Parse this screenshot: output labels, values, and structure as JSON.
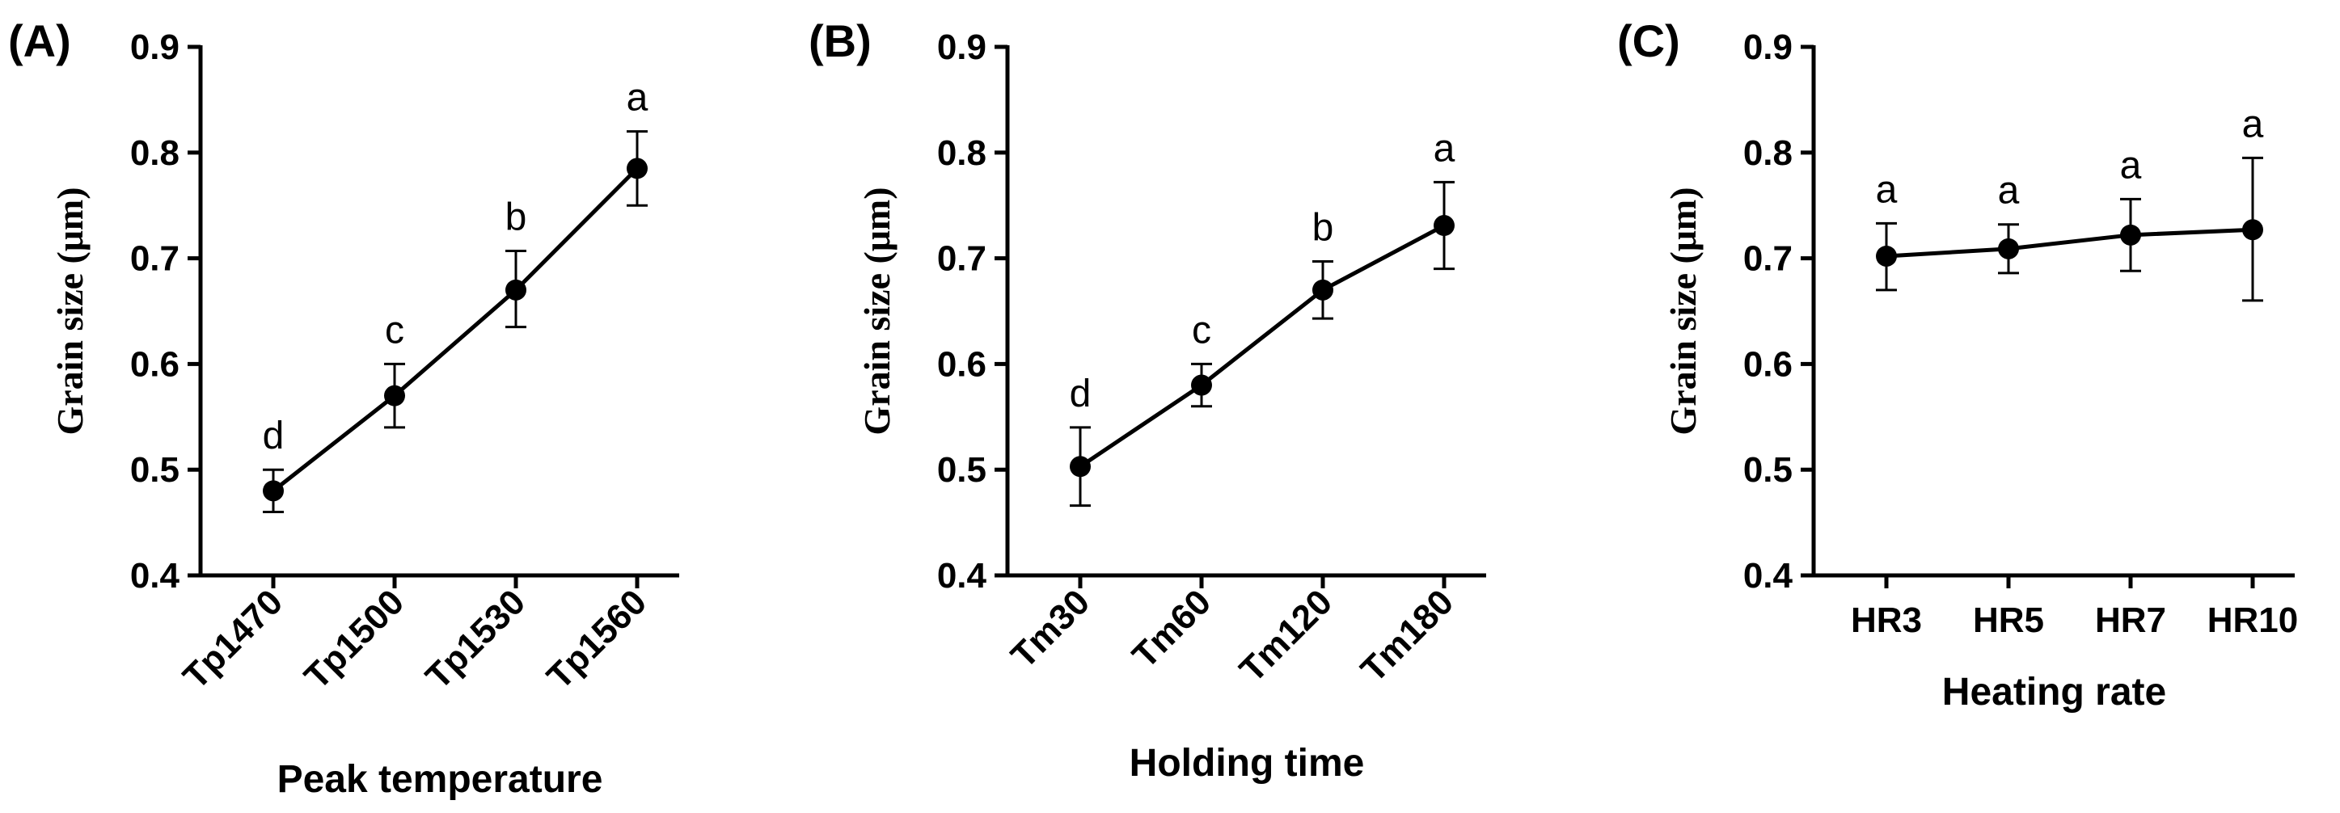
{
  "chart_data": [
    {
      "type": "line",
      "panel": "(A)",
      "categories": [
        "Tp1470",
        "Tp1500",
        "Tp1530",
        "Tp1560"
      ],
      "values": [
        0.48,
        0.57,
        0.67,
        0.785
      ],
      "errors": [
        [
          0.46,
          0.5
        ],
        [
          0.54,
          0.6
        ],
        [
          0.635,
          0.707
        ],
        [
          0.75,
          0.82
        ]
      ],
      "sig_labels": [
        "d",
        "c",
        "b",
        "a"
      ],
      "xlabel": "Peak temperature",
      "ylabel": "Grain size (μm)",
      "ylim": [
        0.4,
        0.9
      ],
      "yticks": [
        "0.4",
        "0.5",
        "0.6",
        "0.7",
        "0.8",
        "0.9"
      ],
      "rotated_xticks": true
    },
    {
      "type": "line",
      "panel": "(B)",
      "categories": [
        "Tm30",
        "Tm60",
        "Tm120",
        "Tm180"
      ],
      "values": [
        0.503,
        0.58,
        0.67,
        0.731
      ],
      "errors": [
        [
          0.466,
          0.54
        ],
        [
          0.56,
          0.6
        ],
        [
          0.643,
          0.697
        ],
        [
          0.69,
          0.772
        ]
      ],
      "sig_labels": [
        "d",
        "c",
        "b",
        "a"
      ],
      "xlabel": "Holding time",
      "ylabel": "Grain size (μm)",
      "ylim": [
        0.4,
        0.9
      ],
      "yticks": [
        "0.4",
        "0.5",
        "0.6",
        "0.7",
        "0.8",
        "0.9"
      ],
      "rotated_xticks": true
    },
    {
      "type": "line",
      "panel": "(C)",
      "categories": [
        "HR3",
        "HR5",
        "HR7",
        "HR10"
      ],
      "values": [
        0.702,
        0.709,
        0.722,
        0.727
      ],
      "errors": [
        [
          0.67,
          0.733
        ],
        [
          0.686,
          0.732
        ],
        [
          0.688,
          0.756
        ],
        [
          0.66,
          0.795
        ]
      ],
      "sig_labels": [
        "a",
        "a",
        "a",
        "a"
      ],
      "xlabel": "Heating rate",
      "ylabel": "Grain size (μm)",
      "ylim": [
        0.4,
        0.9
      ],
      "yticks": [
        "0.4",
        "0.5",
        "0.6",
        "0.7",
        "0.8",
        "0.9"
      ],
      "rotated_xticks": false
    }
  ]
}
